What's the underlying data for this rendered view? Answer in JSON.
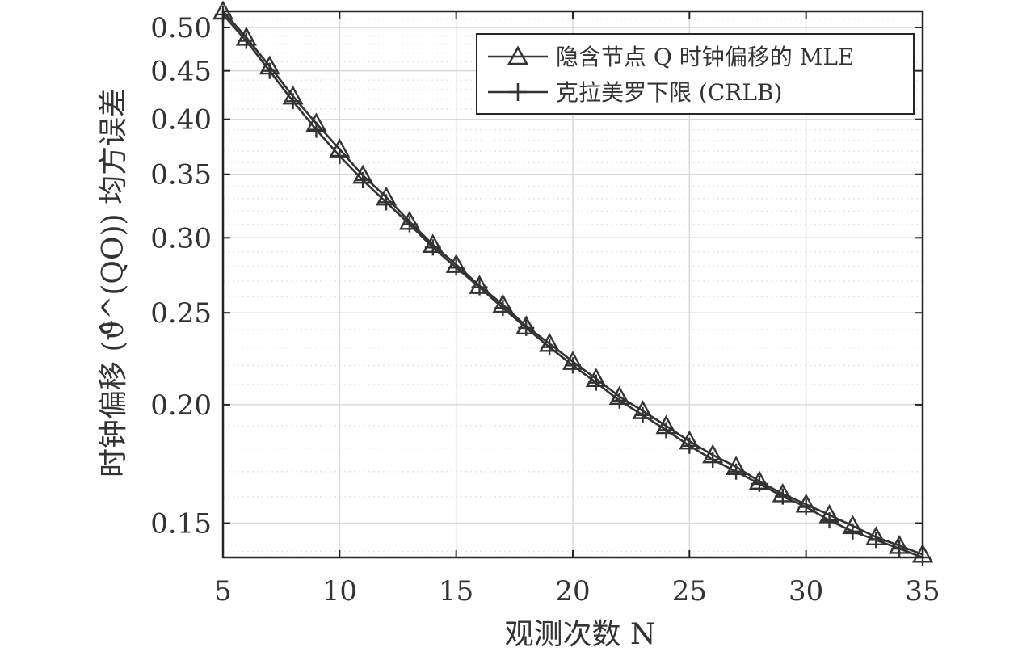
{
  "chart_data": {
    "type": "line",
    "title": "",
    "xlabel": "观测次数 N",
    "ylabel": "时钟偏移 (ϑ̂^(QO)) 均方误差",
    "x": [
      5,
      6,
      7,
      8,
      9,
      10,
      11,
      12,
      13,
      14,
      15,
      16,
      17,
      18,
      19,
      20,
      21,
      22,
      23,
      24,
      25,
      26,
      27,
      28,
      29,
      30,
      31,
      32,
      33,
      34,
      35
    ],
    "series": [
      {
        "name": "隐含节点 Q 时钟偏移的 MLE",
        "marker": "triangle",
        "values": [
          0.52,
          0.488,
          0.455,
          0.423,
          0.396,
          0.372,
          0.349,
          0.331,
          0.312,
          0.295,
          0.281,
          0.267,
          0.255,
          0.242,
          0.232,
          0.222,
          0.213,
          0.204,
          0.197,
          0.19,
          0.183,
          0.177,
          0.172,
          0.166,
          0.161,
          0.157,
          0.153,
          0.149,
          0.145,
          0.142,
          0.139
        ]
      },
      {
        "name": "克拉美罗下限 (CRLB)",
        "marker": "plus",
        "values": [
          0.516,
          0.484,
          0.45,
          0.418,
          0.39,
          0.366,
          0.345,
          0.327,
          0.31,
          0.293,
          0.279,
          0.266,
          0.253,
          0.241,
          0.23,
          0.22,
          0.211,
          0.202,
          0.195,
          0.188,
          0.181,
          0.175,
          0.17,
          0.165,
          0.16,
          0.156,
          0.151,
          0.147,
          0.144,
          0.141,
          0.138
        ]
      }
    ],
    "xlim": [
      5,
      35
    ],
    "ylim": [
      0.138,
      0.52
    ],
    "yscale": "log",
    "xticks": [
      5,
      10,
      15,
      20,
      25,
      30,
      35
    ],
    "yticks": [
      0.15,
      0.2,
      0.25,
      0.3,
      0.35,
      0.4,
      0.45,
      0.5
    ],
    "xtick_labels": [
      "5",
      "10",
      "15",
      "20",
      "25",
      "30",
      "35"
    ],
    "ytick_labels": [
      "0.15",
      "0.20",
      "0.25",
      "0.30",
      "0.35",
      "0.40",
      "0.45",
      "0.50"
    ],
    "grid": true,
    "legend_position": "top-right",
    "colors": {
      "line": "#333333",
      "grid_major": "#d9d9d9",
      "grid_minor": "#e6e6e6"
    }
  }
}
